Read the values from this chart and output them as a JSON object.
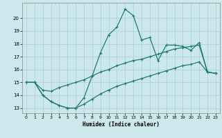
{
  "xlabel": "Humidex (Indice chaleur)",
  "bg_color": "#cde8ec",
  "grid_color": "#aacdd4",
  "line_color": "#1e7a72",
  "xlim": [
    -0.5,
    23.5
  ],
  "ylim": [
    12.6,
    21.2
  ],
  "yticks": [
    13,
    14,
    15,
    16,
    17,
    18,
    19,
    20
  ],
  "xticks": [
    0,
    1,
    2,
    3,
    4,
    5,
    6,
    7,
    8,
    9,
    10,
    11,
    12,
    13,
    14,
    15,
    16,
    17,
    18,
    19,
    20,
    21,
    22,
    23
  ],
  "series1_y": [
    15.0,
    15.0,
    14.0,
    13.5,
    13.2,
    13.0,
    13.0,
    13.8,
    15.5,
    17.3,
    18.7,
    19.3,
    20.7,
    20.2,
    18.3,
    18.5,
    16.7,
    17.9,
    17.9,
    17.8,
    17.5,
    18.1,
    15.8,
    15.7
  ],
  "series2_y": [
    15.0,
    15.0,
    14.4,
    14.3,
    14.6,
    14.8,
    15.0,
    15.2,
    15.5,
    15.8,
    16.0,
    16.3,
    16.5,
    16.7,
    16.8,
    17.0,
    17.2,
    17.4,
    17.6,
    17.7,
    17.8,
    17.9,
    15.8,
    15.7
  ],
  "series3_y": [
    15.0,
    15.0,
    14.0,
    13.5,
    13.2,
    13.0,
    13.0,
    13.3,
    13.7,
    14.1,
    14.4,
    14.7,
    14.9,
    15.1,
    15.3,
    15.5,
    15.7,
    15.9,
    16.1,
    16.3,
    16.4,
    16.6,
    15.8,
    15.7
  ]
}
